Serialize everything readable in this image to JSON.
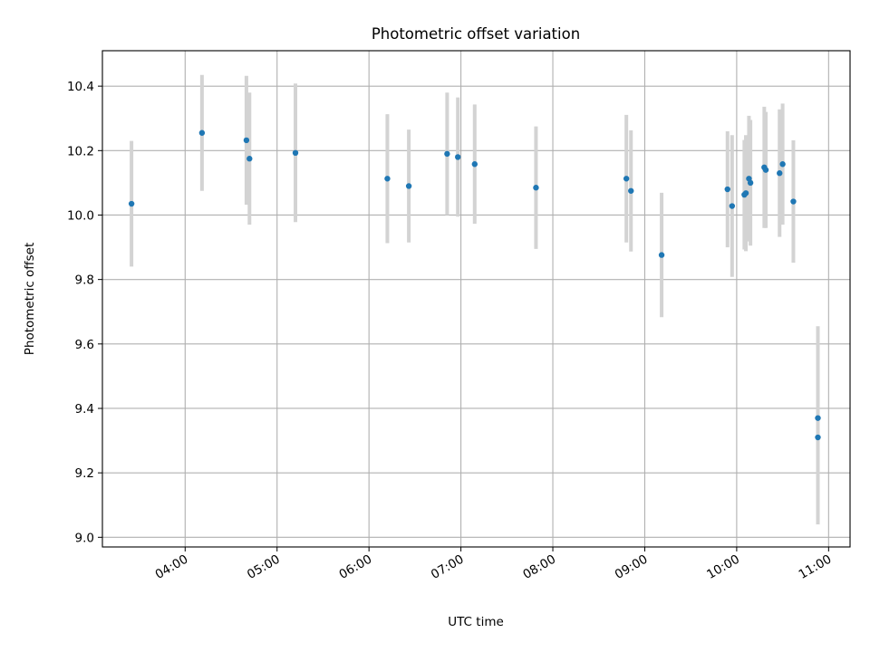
{
  "chart_data": {
    "type": "scatter",
    "title": "Photometric offset variation",
    "xlabel": "UTC time",
    "ylabel": "Photometric offset",
    "xlim": [
      "03:06",
      "11:14"
    ],
    "ylim": [
      8.97,
      10.51
    ],
    "grid": true,
    "x_ticks": [
      "04:00",
      "05:00",
      "06:00",
      "07:00",
      "08:00",
      "09:00",
      "10:00",
      "11:00"
    ],
    "y_ticks": [
      "9.0",
      "9.2",
      "9.4",
      "9.6",
      "9.8",
      "10.0",
      "10.2",
      "10.4"
    ],
    "colors": {
      "point": "#1f77b4",
      "errorbar": "#d3d3d3",
      "grid": "#b0b0b0"
    },
    "series": [
      {
        "points": [
          {
            "x": "03:25",
            "y": 10.035,
            "err": 0.195
          },
          {
            "x": "04:11",
            "y": 10.255,
            "err": 0.18
          },
          {
            "x": "04:40",
            "y": 10.232,
            "err": 0.2
          },
          {
            "x": "04:42",
            "y": 10.175,
            "err": 0.205
          },
          {
            "x": "05:12",
            "y": 10.193,
            "err": 0.215
          },
          {
            "x": "06:12",
            "y": 10.113,
            "err": 0.2
          },
          {
            "x": "06:26",
            "y": 10.09,
            "err": 0.175
          },
          {
            "x": "06:51",
            "y": 10.19,
            "err": 0.19
          },
          {
            "x": "06:58",
            "y": 10.18,
            "err": 0.185
          },
          {
            "x": "07:09",
            "y": 10.158,
            "err": 0.185
          },
          {
            "x": "07:49",
            "y": 10.085,
            "err": 0.19
          },
          {
            "x": "08:48",
            "y": 10.113,
            "err": 0.198
          },
          {
            "x": "08:51",
            "y": 10.075,
            "err": 0.188
          },
          {
            "x": "09:11",
            "y": 9.876,
            "err": 0.193
          },
          {
            "x": "09:54",
            "y": 10.08,
            "err": 0.18
          },
          {
            "x": "09:57",
            "y": 10.028,
            "err": 0.22
          },
          {
            "x": "10:05",
            "y": 10.063,
            "err": 0.17
          },
          {
            "x": "10:06",
            "y": 10.068,
            "err": 0.18
          },
          {
            "x": "10:08",
            "y": 10.113,
            "err": 0.195
          },
          {
            "x": "10:09",
            "y": 10.1,
            "err": 0.195
          },
          {
            "x": "10:18",
            "y": 10.148,
            "err": 0.188
          },
          {
            "x": "10:19",
            "y": 10.14,
            "err": 0.18
          },
          {
            "x": "10:28",
            "y": 10.13,
            "err": 0.198
          },
          {
            "x": "10:30",
            "y": 10.158,
            "err": 0.188
          },
          {
            "x": "10:37",
            "y": 10.042,
            "err": 0.19
          },
          {
            "x": "10:53",
            "y": 9.37,
            "err": 0.285
          },
          {
            "x": "10:53",
            "y": 9.31,
            "err": 0.27
          }
        ]
      }
    ]
  }
}
